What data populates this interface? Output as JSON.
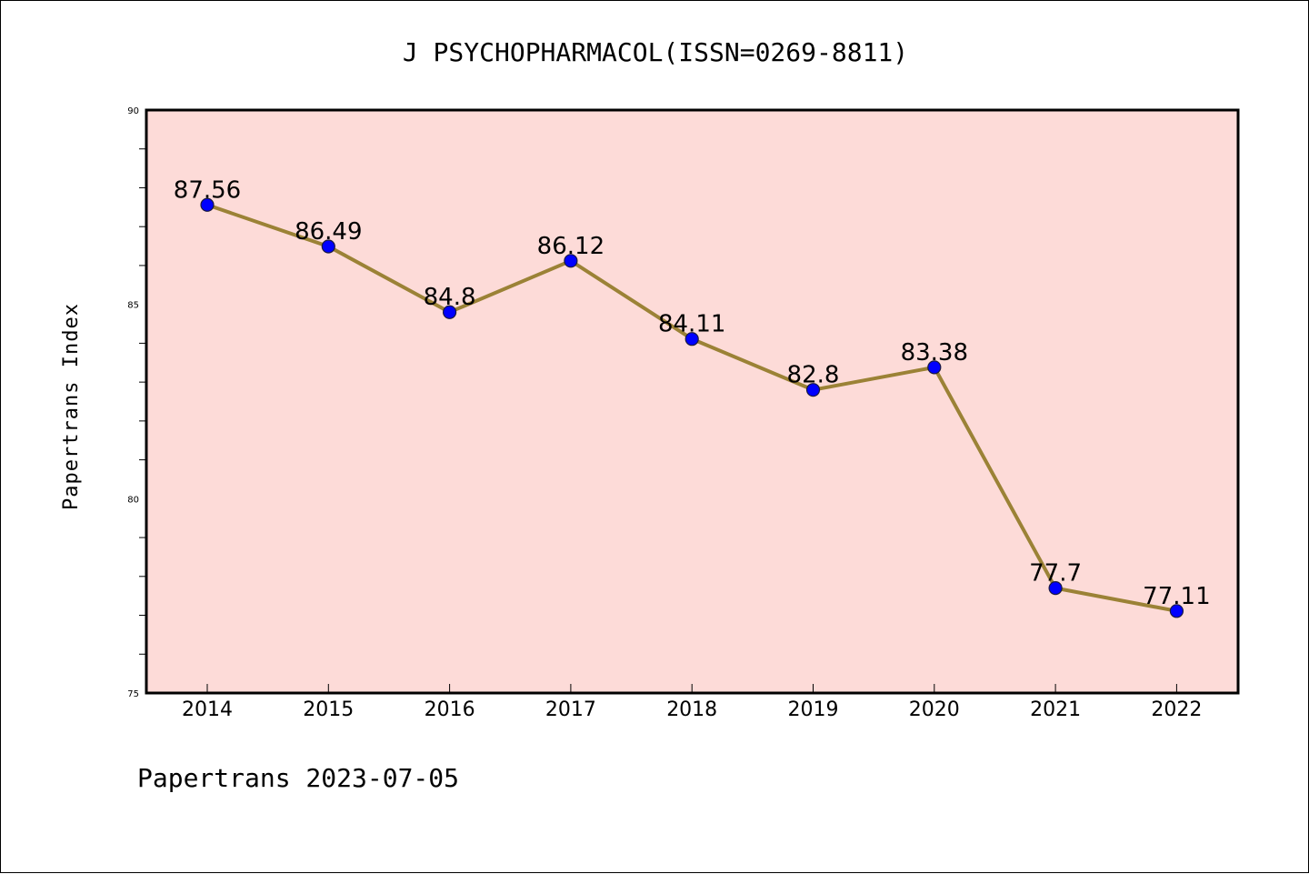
{
  "chart_data": {
    "type": "line",
    "title": "J PSYCHOPHARMACOL(ISSN=0269-8811)",
    "xlabel": "",
    "ylabel": "Papertrans Index",
    "categories": [
      "2014",
      "2015",
      "2016",
      "2017",
      "2018",
      "2019",
      "2020",
      "2021",
      "2022"
    ],
    "series": [
      {
        "values": [
          87.56,
          86.49,
          84.8,
          86.12,
          84.11,
          82.8,
          83.38,
          77.7,
          77.11
        ],
        "data_labels": [
          "87.56",
          "86.49",
          "84.8",
          "86.12",
          "84.11",
          "82.8",
          "83.38",
          "77.7",
          "77.11"
        ]
      }
    ],
    "ylim": [
      75,
      90
    ],
    "yticks": [
      "75",
      "80",
      "85",
      "90"
    ],
    "grid": false,
    "colors": {
      "plot_background": "#fddbd8",
      "line": "#9b8236",
      "marker": "#0000ff",
      "marker_edge": "#1a1a40"
    }
  },
  "footer": "Papertrans 2023-07-05"
}
